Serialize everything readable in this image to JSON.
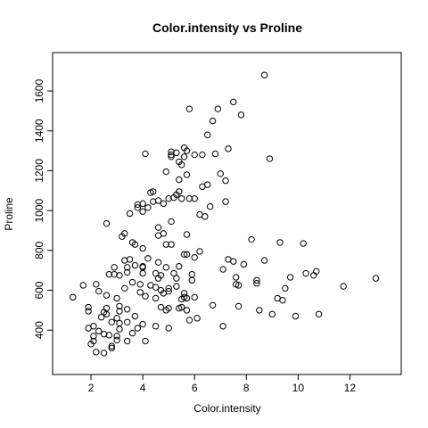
{
  "chart_data": {
    "type": "scatter",
    "title": "Color.intensity vs Proline",
    "xlabel": "Color.intensity",
    "ylabel": "Proline",
    "xlim": [
      1.0,
      13.5
    ],
    "ylim": [
      240,
      1730
    ],
    "xticks": [
      2,
      4,
      6,
      8,
      10,
      12
    ],
    "yticks": [
      400,
      600,
      800,
      1000,
      1200,
      1400,
      1600
    ],
    "grid": false,
    "legend": "none",
    "points": [
      [
        1.3,
        565
      ],
      [
        1.7,
        625
      ],
      [
        1.9,
        515
      ],
      [
        1.9,
        495
      ],
      [
        1.9,
        410
      ],
      [
        2.0,
        330
      ],
      [
        2.1,
        420
      ],
      [
        2.1,
        345
      ],
      [
        2.1,
        370
      ],
      [
        2.2,
        630
      ],
      [
        2.2,
        290
      ],
      [
        2.3,
        595
      ],
      [
        2.3,
        395
      ],
      [
        2.4,
        465
      ],
      [
        2.5,
        490
      ],
      [
        2.5,
        380
      ],
      [
        2.5,
        285
      ],
      [
        2.6,
        575
      ],
      [
        2.6,
        510
      ],
      [
        2.6,
        480
      ],
      [
        2.6,
        935
      ],
      [
        2.7,
        680
      ],
      [
        2.7,
        375
      ],
      [
        2.8,
        310
      ],
      [
        2.8,
        440
      ],
      [
        2.8,
        320
      ],
      [
        2.9,
        715
      ],
      [
        2.9,
        680
      ],
      [
        3.0,
        460
      ],
      [
        3.0,
        350
      ],
      [
        3.0,
        560
      ],
      [
        3.0,
        370
      ],
      [
        3.1,
        675
      ],
      [
        3.1,
        495
      ],
      [
        3.1,
        435
      ],
      [
        3.1,
        520
      ],
      [
        3.1,
        405
      ],
      [
        3.2,
        870
      ],
      [
        3.3,
        750
      ],
      [
        3.3,
        610
      ],
      [
        3.3,
        885
      ],
      [
        3.4,
        690
      ],
      [
        3.4,
        345
      ],
      [
        3.4,
        440
      ],
      [
        3.4,
        505
      ],
      [
        3.4,
        715
      ],
      [
        3.5,
        985
      ],
      [
        3.5,
        755
      ],
      [
        3.6,
        640
      ],
      [
        3.6,
        385
      ],
      [
        3.6,
        840
      ],
      [
        3.7,
        830
      ],
      [
        3.7,
        470
      ],
      [
        3.7,
        725
      ],
      [
        3.8,
        1030
      ],
      [
        3.8,
        1015
      ],
      [
        3.8,
        410
      ],
      [
        3.9,
        630
      ],
      [
        3.9,
        590
      ],
      [
        4.0,
        715
      ],
      [
        4.0,
        995
      ],
      [
        4.0,
        1035
      ],
      [
        4.0,
        720
      ],
      [
        4.0,
        810
      ],
      [
        4.0,
        685
      ],
      [
        4.0,
        430
      ],
      [
        4.1,
        570
      ],
      [
        4.1,
        1285
      ],
      [
        4.1,
        345
      ],
      [
        4.2,
        1015
      ],
      [
        4.2,
        760
      ],
      [
        4.3,
        1090
      ],
      [
        4.3,
        625
      ],
      [
        4.4,
        1095
      ],
      [
        4.4,
        1045
      ],
      [
        4.5,
        560
      ],
      [
        4.5,
        615
      ],
      [
        4.5,
        685
      ],
      [
        4.5,
        420
      ],
      [
        4.6,
        1050
      ],
      [
        4.6,
        915
      ],
      [
        4.6,
        660
      ],
      [
        4.6,
        740
      ],
      [
        4.6,
        875
      ],
      [
        4.7,
        600
      ],
      [
        4.7,
        675
      ],
      [
        4.7,
        515
      ],
      [
        4.8,
        1035
      ],
      [
        4.8,
        585
      ],
      [
        4.8,
        885
      ],
      [
        4.9,
        1195
      ],
      [
        4.9,
        830
      ],
      [
        4.9,
        715
      ],
      [
        4.9,
        500
      ],
      [
        5.0,
        1060
      ],
      [
        5.0,
        610
      ],
      [
        5.0,
        595
      ],
      [
        5.0,
        510
      ],
      [
        5.0,
        410
      ],
      [
        5.1,
        1280
      ],
      [
        5.1,
        1295
      ],
      [
        5.1,
        945
      ],
      [
        5.1,
        830
      ],
      [
        5.1,
        1270
      ],
      [
        5.2,
        1065
      ],
      [
        5.2,
        685
      ],
      [
        5.3,
        1290
      ],
      [
        5.3,
        1080
      ],
      [
        5.3,
        620
      ],
      [
        5.4,
        1245
      ],
      [
        5.4,
        1155
      ],
      [
        5.4,
        1095
      ],
      [
        5.4,
        720
      ],
      [
        5.4,
        510
      ],
      [
        5.5,
        515
      ],
      [
        5.5,
        1230
      ],
      [
        5.5,
        1060
      ],
      [
        5.6,
        1315
      ],
      [
        5.6,
        1270
      ],
      [
        5.6,
        780
      ],
      [
        5.6,
        585
      ],
      [
        5.6,
        565
      ],
      [
        5.7,
        1300
      ],
      [
        5.7,
        1180
      ],
      [
        5.7,
        880
      ],
      [
        5.7,
        780
      ],
      [
        5.7,
        560
      ],
      [
        5.7,
        500
      ],
      [
        5.8,
        1510
      ],
      [
        5.8,
        1060
      ],
      [
        5.8,
        450
      ],
      [
        5.9,
        650
      ],
      [
        5.9,
        680
      ],
      [
        6.0,
        765
      ],
      [
        6.0,
        1280
      ],
      [
        6.0,
        1060
      ],
      [
        6.1,
        460
      ],
      [
        6.2,
        980
      ],
      [
        6.2,
        795
      ],
      [
        6.3,
        1120
      ],
      [
        6.3,
        1280
      ],
      [
        6.4,
        970
      ],
      [
        6.5,
        1130
      ],
      [
        6.5,
        1380
      ],
      [
        6.6,
        1020
      ],
      [
        6.7,
        1450
      ],
      [
        6.7,
        525
      ],
      [
        6.8,
        1285
      ],
      [
        6.9,
        1510
      ],
      [
        7.0,
        1185
      ],
      [
        7.1,
        420
      ],
      [
        7.1,
        705
      ],
      [
        7.2,
        1150
      ],
      [
        7.2,
        1045
      ],
      [
        7.3,
        1310
      ],
      [
        7.3,
        755
      ],
      [
        7.5,
        745
      ],
      [
        7.5,
        1545
      ],
      [
        7.6,
        630
      ],
      [
        7.6,
        665
      ],
      [
        7.7,
        625
      ],
      [
        7.7,
        520
      ],
      [
        7.8,
        1480
      ],
      [
        7.9,
        730
      ],
      [
        8.2,
        855
      ],
      [
        8.4,
        650
      ],
      [
        8.4,
        635
      ],
      [
        8.5,
        500
      ],
      [
        8.7,
        1680
      ],
      [
        8.7,
        750
      ],
      [
        8.9,
        1260
      ],
      [
        9.0,
        480
      ],
      [
        9.3,
        840
      ],
      [
        9.2,
        560
      ],
      [
        9.4,
        550
      ],
      [
        9.5,
        610
      ],
      [
        9.7,
        665
      ],
      [
        9.9,
        470
      ],
      [
        10.2,
        835
      ],
      [
        10.3,
        685
      ],
      [
        10.6,
        675
      ],
      [
        10.7,
        695
      ],
      [
        10.8,
        480
      ],
      [
        11.75,
        620
      ],
      [
        13.0,
        660
      ],
      [
        5.5,
        555
      ],
      [
        5.3,
        660
      ],
      [
        6.0,
        565
      ]
    ]
  }
}
